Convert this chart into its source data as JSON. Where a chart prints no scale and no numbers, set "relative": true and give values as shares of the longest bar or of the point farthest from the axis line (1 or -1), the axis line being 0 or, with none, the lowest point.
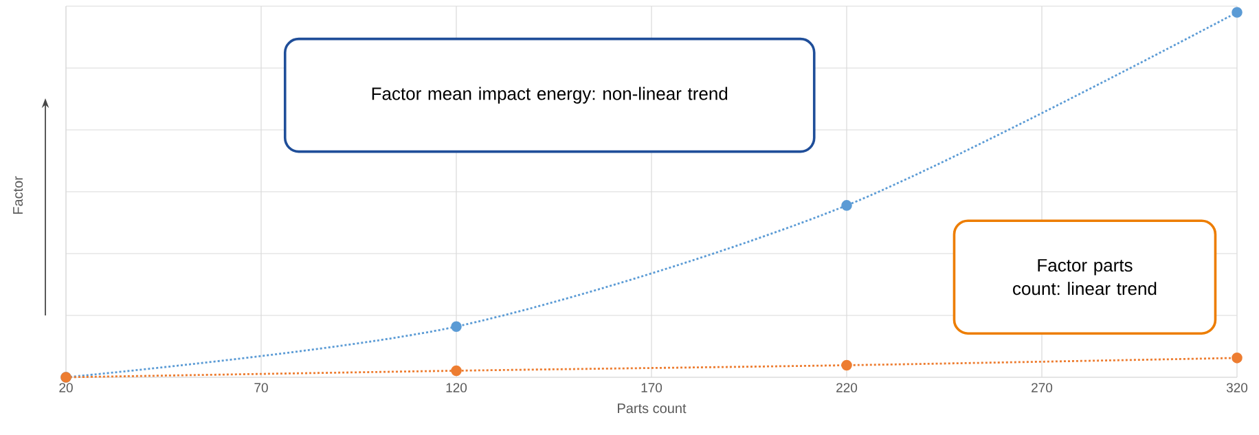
{
  "chart_data": {
    "type": "line",
    "xlabel": "Parts count",
    "ylabel": "Factor",
    "relative": true,
    "xlim": [
      20,
      320
    ],
    "xticks": [
      20,
      70,
      120,
      170,
      220,
      270,
      320
    ],
    "series": [
      {
        "color": "#5b9bd5",
        "x": [
          20,
          120,
          220,
          320
        ],
        "values": [
          0,
          0.139,
          0.471,
          1
        ]
      },
      {
        "color": "#ed7d31",
        "x": [
          20,
          120,
          220,
          320
        ],
        "values": [
          0,
          0.018,
          0.033,
          0.053
        ]
      }
    ],
    "annotations": [
      "Factor mean impact energy: non-linear trend",
      "Factor parts count: linear trend"
    ],
    "grid": true,
    "marker": "circle",
    "line_style": "dotted"
  }
}
